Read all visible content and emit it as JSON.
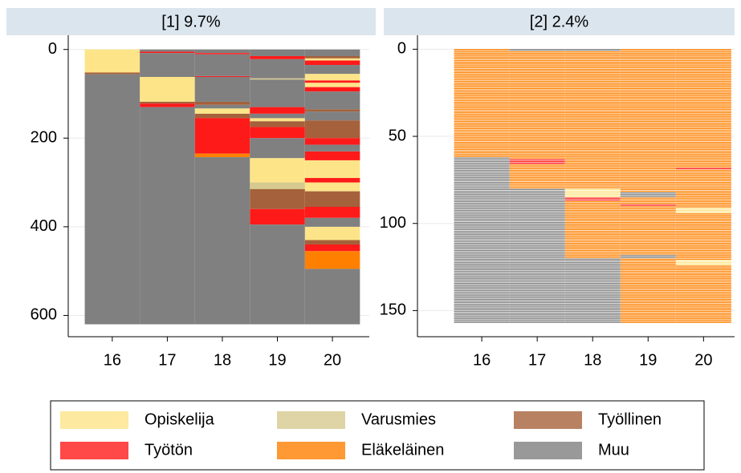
{
  "chart_data": [
    {
      "type": "sequence_index",
      "title": "[1] 9.7%",
      "xlim": [
        15.2,
        20.67
      ],
      "xticks": [
        16,
        17,
        18,
        19,
        20
      ],
      "ylim": [
        -32,
        648
      ],
      "yticks": [
        0,
        200,
        400,
        600
      ],
      "y_reversed": true,
      "grid": true,
      "row_lines": false,
      "legend": "bottom",
      "series": [
        {
          "name": "Opiskelija",
          "color": "#fde488",
          "segments": [
            {
              "x": 16,
              "y0": 0,
              "y1": 52
            },
            {
              "x": 17,
              "y0": 62,
              "y1": 118
            },
            {
              "x": 18,
              "y0": 133,
              "y1": 145
            },
            {
              "x": 19,
              "y0": 155,
              "y1": 162
            },
            {
              "x": 19,
              "y0": 245,
              "y1": 300
            },
            {
              "x": 20,
              "y0": 20,
              "y1": 25
            },
            {
              "x": 20,
              "y0": 55,
              "y1": 70
            },
            {
              "x": 20,
              "y0": 75,
              "y1": 85
            },
            {
              "x": 20,
              "y0": 250,
              "y1": 290
            },
            {
              "x": 20,
              "y0": 300,
              "y1": 320
            },
            {
              "x": 20,
              "y0": 400,
              "y1": 430
            }
          ]
        },
        {
          "name": "Varusmies",
          "color": "#d6c98f",
          "segments": [
            {
              "x": 19,
              "y0": 65,
              "y1": 68
            },
            {
              "x": 19,
              "y0": 300,
              "y1": 315
            }
          ]
        },
        {
          "name": "Työllinen",
          "color": "#a5613b",
          "segments": [
            {
              "x": 16,
              "y0": 52,
              "y1": 56
            },
            {
              "x": 17,
              "y0": 118,
              "y1": 122
            },
            {
              "x": 18,
              "y0": 118,
              "y1": 125
            },
            {
              "x": 18,
              "y0": 145,
              "y1": 155
            },
            {
              "x": 19,
              "y0": 162,
              "y1": 175
            },
            {
              "x": 19,
              "y0": 315,
              "y1": 360
            },
            {
              "x": 20,
              "y0": 15,
              "y1": 20
            },
            {
              "x": 20,
              "y0": 135,
              "y1": 140
            },
            {
              "x": 20,
              "y0": 160,
              "y1": 200
            },
            {
              "x": 20,
              "y0": 320,
              "y1": 355
            },
            {
              "x": 20,
              "y0": 430,
              "y1": 440
            }
          ]
        },
        {
          "name": "Työtön",
          "color": "#ff1a1a",
          "segments": [
            {
              "x": 17,
              "y0": 5,
              "y1": 8
            },
            {
              "x": 17,
              "y0": 122,
              "y1": 130
            },
            {
              "x": 18,
              "y0": 8,
              "y1": 11
            },
            {
              "x": 18,
              "y0": 60,
              "y1": 62
            },
            {
              "x": 18,
              "y0": 155,
              "y1": 235
            },
            {
              "x": 19,
              "y0": 15,
              "y1": 22
            },
            {
              "x": 19,
              "y0": 130,
              "y1": 145
            },
            {
              "x": 19,
              "y0": 175,
              "y1": 200
            },
            {
              "x": 19,
              "y0": 360,
              "y1": 395
            },
            {
              "x": 20,
              "y0": 25,
              "y1": 35
            },
            {
              "x": 20,
              "y0": 70,
              "y1": 75
            },
            {
              "x": 20,
              "y0": 85,
              "y1": 95
            },
            {
              "x": 20,
              "y0": 200,
              "y1": 215
            },
            {
              "x": 20,
              "y0": 230,
              "y1": 250
            },
            {
              "x": 20,
              "y0": 290,
              "y1": 300
            },
            {
              "x": 20,
              "y0": 355,
              "y1": 380
            },
            {
              "x": 20,
              "y0": 440,
              "y1": 455
            }
          ]
        },
        {
          "name": "Eläkeläinen",
          "color": "#ff8000",
          "segments": [
            {
              "x": 18,
              "y0": 235,
              "y1": 243
            },
            {
              "x": 20,
              "y0": 455,
              "y1": 495
            }
          ]
        },
        {
          "name": "Muu",
          "color": "#808080",
          "segments": [
            {
              "x": 16,
              "y0": 56,
              "y1": 620
            },
            {
              "x": 17,
              "y0": 0,
              "y1": 5
            },
            {
              "x": 17,
              "y0": 8,
              "y1": 62
            },
            {
              "x": 17,
              "y0": 130,
              "y1": 620
            },
            {
              "x": 18,
              "y0": 0,
              "y1": 8
            },
            {
              "x": 18,
              "y0": 11,
              "y1": 60
            },
            {
              "x": 18,
              "y0": 62,
              "y1": 118
            },
            {
              "x": 18,
              "y0": 125,
              "y1": 133
            },
            {
              "x": 18,
              "y0": 243,
              "y1": 620
            },
            {
              "x": 19,
              "y0": 0,
              "y1": 15
            },
            {
              "x": 19,
              "y0": 22,
              "y1": 65
            },
            {
              "x": 19,
              "y0": 68,
              "y1": 130
            },
            {
              "x": 19,
              "y0": 145,
              "y1": 155
            },
            {
              "x": 19,
              "y0": 200,
              "y1": 245
            },
            {
              "x": 19,
              "y0": 395,
              "y1": 620
            },
            {
              "x": 20,
              "y0": 0,
              "y1": 15
            },
            {
              "x": 20,
              "y0": 35,
              "y1": 55
            },
            {
              "x": 20,
              "y0": 95,
              "y1": 135
            },
            {
              "x": 20,
              "y0": 140,
              "y1": 160
            },
            {
              "x": 20,
              "y0": 215,
              "y1": 230
            },
            {
              "x": 20,
              "y0": 380,
              "y1": 400
            },
            {
              "x": 20,
              "y0": 495,
              "y1": 620
            }
          ]
        }
      ]
    },
    {
      "type": "sequence_index",
      "title": "[2] 2.4%",
      "xlim": [
        14.84,
        20.56
      ],
      "xticks": [
        16,
        17,
        18,
        19,
        20
      ],
      "ylim": [
        -8,
        165
      ],
      "yticks": [
        0,
        50,
        100,
        150
      ],
      "y_reversed": true,
      "grid": true,
      "row_lines": true,
      "series": [
        {
          "name": "Opiskelija",
          "color": "#fde488",
          "segments": [
            {
              "x": 18,
              "y0": 80,
              "y1": 85
            },
            {
              "x": 20,
              "y0": 91,
              "y1": 94
            },
            {
              "x": 20,
              "y0": 121,
              "y1": 124
            }
          ]
        },
        {
          "name": "Työtön",
          "color": "#ff1a1a",
          "segments": [
            {
              "x": 17,
              "y0": 63,
              "y1": 66
            },
            {
              "x": 18,
              "y0": 85,
              "y1": 87
            },
            {
              "x": 19,
              "y0": 89,
              "y1": 90
            },
            {
              "x": 20,
              "y0": 68,
              "y1": 69
            }
          ]
        },
        {
          "name": "Eläkeläinen",
          "color": "#ff8000",
          "segments": [
            {
              "x": 16,
              "y0": 0,
              "y1": 62
            },
            {
              "x": 17,
              "y0": 1,
              "y1": 63
            },
            {
              "x": 17,
              "y0": 66,
              "y1": 80
            },
            {
              "x": 18,
              "y0": 1,
              "y1": 80
            },
            {
              "x": 18,
              "y0": 87,
              "y1": 120
            },
            {
              "x": 19,
              "y0": 0,
              "y1": 82
            },
            {
              "x": 19,
              "y0": 85,
              "y1": 89
            },
            {
              "x": 19,
              "y0": 90,
              "y1": 118
            },
            {
              "x": 19,
              "y0": 120,
              "y1": 157
            },
            {
              "x": 20,
              "y0": 0,
              "y1": 68
            },
            {
              "x": 20,
              "y0": 69,
              "y1": 91
            },
            {
              "x": 20,
              "y0": 94,
              "y1": 121
            },
            {
              "x": 20,
              "y0": 124,
              "y1": 157
            }
          ]
        },
        {
          "name": "Muu",
          "color": "#808080",
          "segments": [
            {
              "x": 16,
              "y0": 62,
              "y1": 157
            },
            {
              "x": 17,
              "y0": 0,
              "y1": 1
            },
            {
              "x": 17,
              "y0": 80,
              "y1": 157
            },
            {
              "x": 18,
              "y0": 0,
              "y1": 1
            },
            {
              "x": 18,
              "y0": 120,
              "y1": 157
            },
            {
              "x": 19,
              "y0": 82,
              "y1": 85
            },
            {
              "x": 19,
              "y0": 118,
              "y1": 120
            }
          ]
        }
      ]
    }
  ]
}
